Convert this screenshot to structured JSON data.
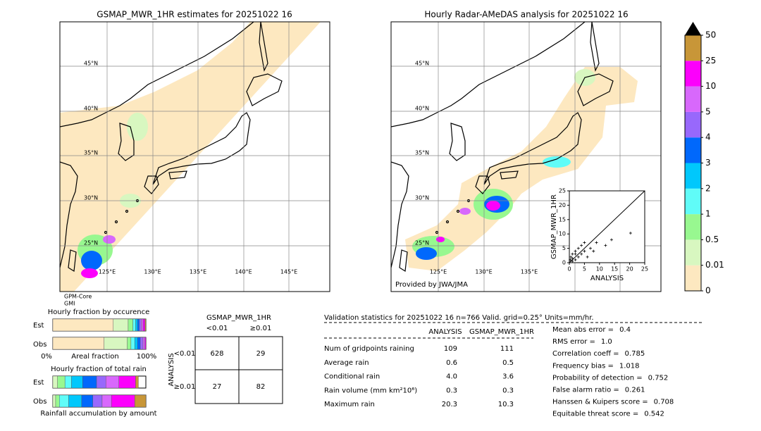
{
  "left_map": {
    "title": "GSMAP_MWR_1HR estimates for 20251022 16",
    "lat_labels": [
      "45°N",
      "40°N",
      "35°N",
      "30°N",
      "25°N"
    ],
    "lon_labels": [
      "125°E",
      "130°E",
      "135°E",
      "140°E",
      "145°E"
    ],
    "sensor": [
      "GPM-Core",
      "GMI"
    ]
  },
  "right_map": {
    "title": "Hourly Radar-AMeDAS analysis for 20251022 16",
    "lat_labels": [
      "45°N",
      "40°N",
      "35°N",
      "30°N",
      "25°N"
    ],
    "lon_labels": [
      "125°E",
      "130°E",
      "135°E"
    ],
    "credit": "Provided by JWA/JMA"
  },
  "scatter": {
    "xlabel": "ANALYSIS",
    "ylabel": "GSMAP_MWR_1HR",
    "xlim": [
      0,
      25
    ],
    "ylim": [
      0,
      25
    ],
    "xticks": [
      0,
      5,
      10,
      15,
      20,
      25
    ],
    "yticks": [
      0,
      5,
      10,
      15,
      20,
      25
    ],
    "analysis": [
      20.3,
      14,
      12,
      9,
      7,
      5,
      4,
      3,
      2,
      1,
      1,
      2,
      3,
      6,
      8,
      1,
      0.5,
      0.3,
      4,
      2,
      5
    ],
    "gsmap": [
      10.3,
      8,
      6,
      7,
      5,
      4,
      3,
      2,
      1,
      1.5,
      3,
      4,
      5,
      2,
      4,
      0.5,
      2,
      1,
      6,
      3,
      7
    ]
  },
  "colorbar": {
    "levels": [
      0,
      0.01,
      0.5,
      1,
      2,
      3,
      4,
      5,
      10,
      25,
      50
    ],
    "colors": [
      "#fde8c0",
      "#d8f7c0",
      "#98f890",
      "#60fcf8",
      "#00c8fc",
      "#0068fc",
      "#9868fc",
      "#d868fc",
      "#fc00fc",
      "#c89638"
    ],
    "extend_color": "#000000"
  },
  "occurrence": {
    "title": "Hourly fraction by occurence",
    "rows": [
      "Est",
      "Obs"
    ],
    "est": [
      65,
      16,
      5,
      3,
      2,
      2,
      2,
      2,
      2,
      1
    ],
    "obs": [
      55,
      25,
      4,
      4,
      3,
      3,
      3,
      2,
      1,
      0
    ],
    "axis_labels": [
      "0%",
      "Areal fraction",
      "100%"
    ]
  },
  "total_rain": {
    "title": "Hourly fraction of total rain",
    "rows": [
      "Est",
      "Obs"
    ],
    "est": [
      5,
      8,
      7,
      12,
      15,
      10,
      14,
      18,
      3
    ],
    "obs": [
      3,
      4,
      10,
      14,
      12,
      10,
      10,
      25,
      12
    ],
    "caption": "Rainfall accumulation by amount"
  },
  "contingency": {
    "title": "GSMAP_MWR_1HR",
    "col_labels": [
      "<0.01",
      "≥0.01"
    ],
    "row_axis": "ANALYSIS",
    "row_labels": [
      "<0.01",
      "≥0.01"
    ],
    "cells": [
      [
        628,
        29
      ],
      [
        27,
        82
      ]
    ]
  },
  "validation": {
    "header": "Validation statistics for 20251022 16  n=766 Valid. grid=0.25° Units=mm/hr.",
    "columns": [
      "ANALYSIS",
      "GSMAP_MWR_1HR"
    ],
    "rows": [
      [
        "Num of gridpoints raining",
        "109",
        "111"
      ],
      [
        "Average rain",
        "0.6",
        "0.5"
      ],
      [
        "Conditional rain",
        "4.0",
        "3.6"
      ],
      [
        "Rain volume (mm km²10⁶)",
        "0.3",
        "0.3"
      ],
      [
        "Maximum rain",
        "20.3",
        "10.3"
      ]
    ],
    "scores": [
      [
        "Mean abs error =",
        "0.4"
      ],
      [
        "RMS error =",
        "1.0"
      ],
      [
        "Correlation coeff =",
        "0.785"
      ],
      [
        "Frequency bias =",
        "1.018"
      ],
      [
        "Probability of detection =",
        "0.752"
      ],
      [
        "False alarm ratio =",
        "0.261"
      ],
      [
        "Hanssen & Kuipers score =",
        "0.708"
      ],
      [
        "Equitable threat score =",
        "0.542"
      ]
    ]
  }
}
